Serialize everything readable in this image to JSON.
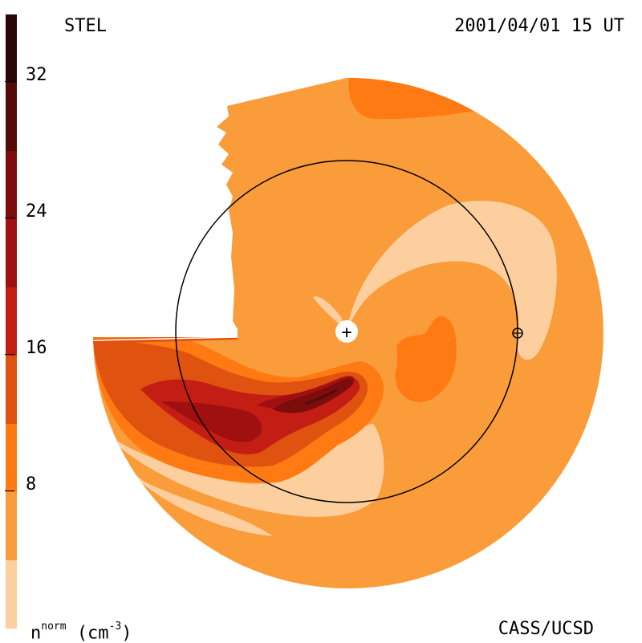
{
  "header": {
    "instrument": "STEL",
    "timestamp": "2001/04/01 15 UT"
  },
  "footer": {
    "credit": "CASS/UCSD",
    "units_main": "n",
    "units_sup": "norm",
    "units_paren": "(cm",
    "units_exp": "-3",
    "units_close": ")"
  },
  "colorbar": {
    "tick_labels": [
      "32",
      "24",
      "16",
      "8"
    ],
    "bands": [
      {
        "color": "#2a0505",
        "range": [
          32,
          36
        ]
      },
      {
        "color": "#550a0a",
        "range": [
          28,
          32
        ]
      },
      {
        "color": "#7d0d0d",
        "range": [
          24,
          28
        ]
      },
      {
        "color": "#a01010",
        "range": [
          20,
          24
        ]
      },
      {
        "color": "#c41e14",
        "range": [
          16,
          20
        ]
      },
      {
        "color": "#e0520f",
        "range": [
          12,
          16
        ]
      },
      {
        "color": "#ff7a12",
        "range": [
          8,
          12
        ]
      },
      {
        "color": "#fb9c3a",
        "range": [
          4,
          8
        ]
      },
      {
        "color": "#fdcf9f",
        "range": [
          0,
          4
        ]
      }
    ]
  },
  "map": {
    "sun_symbol": "+",
    "earth_symbol": "⊕"
  }
}
